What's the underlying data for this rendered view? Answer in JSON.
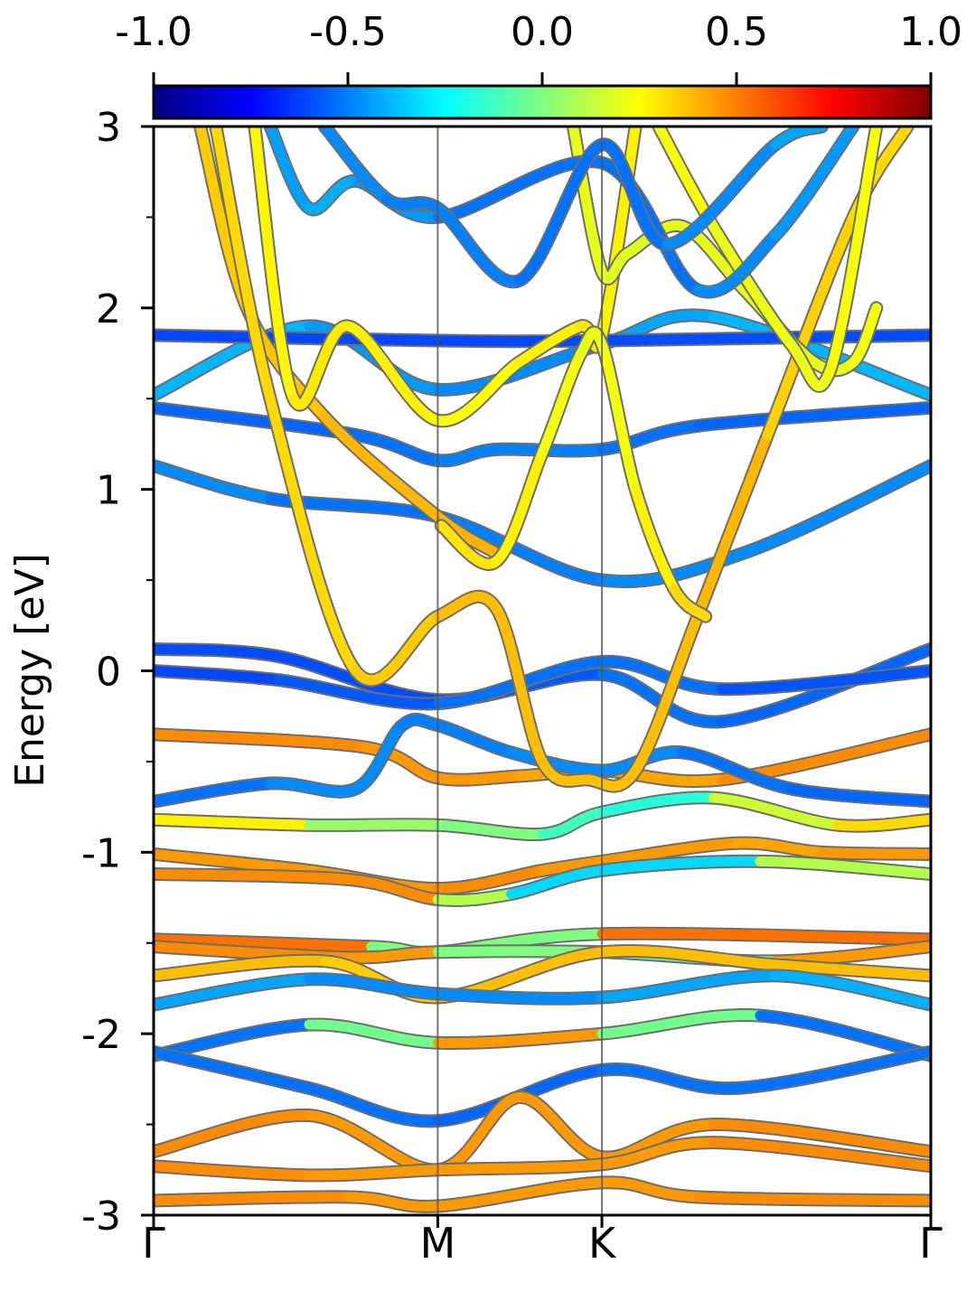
{
  "chart_data": {
    "type": "line",
    "subtype": "band-structure",
    "title": "",
    "xlabel": "",
    "ylabel": "Energy [eV]",
    "ylim": [
      -3,
      3
    ],
    "y_ticks": [
      3,
      2,
      1,
      0,
      -1,
      -2,
      -3
    ],
    "y_tick_labels": [
      "3",
      "2",
      "1",
      "0",
      "-1",
      "-2",
      "-3"
    ],
    "k_path_labels": [
      "Γ",
      "M",
      "K",
      "Γ"
    ],
    "k_path_positions": [
      0,
      0.3656,
      0.5768,
      1.0
    ],
    "grid": false,
    "legend": "none",
    "colorbar": {
      "position": "top",
      "range": [
        -1.0,
        1.0
      ],
      "ticks": [
        -1.0,
        -0.5,
        0.0,
        0.5,
        1.0
      ],
      "tick_labels": [
        "-1.0",
        "-0.5",
        "0.0",
        "0.5",
        "1.0"
      ],
      "colormap": "jet"
    },
    "colors": {
      "colormap_stops": [
        "#00007f",
        "#0000ff",
        "#007fff",
        "#00ffff",
        "#7fff7f",
        "#ffff00",
        "#ff7f00",
        "#ff0000",
        "#7f0000"
      ]
    },
    "series": [
      {
        "x": [
          0,
          0.16,
          0.3656,
          0.5768,
          0.73,
          1.0
        ],
        "y": [
          0.12,
          0.08,
          -0.16,
          -0.02,
          -0.28,
          0.12
        ],
        "c": [
          -0.6,
          -0.6,
          -0.6,
          -0.55,
          -0.5,
          -0.6
        ]
      },
      {
        "x": [
          0,
          0.16,
          0.3656,
          0.5768,
          0.73,
          1.0
        ],
        "y": [
          0.0,
          -0.05,
          -0.18,
          0.05,
          -0.1,
          0.0
        ],
        "c": [
          -0.62,
          -0.6,
          -0.55,
          -0.5,
          -0.55,
          -0.62
        ]
      },
      {
        "x": [
          0,
          0.26,
          0.3656,
          0.44,
          0.5768,
          0.7,
          1.0
        ],
        "y": [
          1.45,
          1.3,
          1.16,
          1.22,
          1.22,
          1.35,
          1.45
        ],
        "c": [
          -0.55,
          -0.55,
          -0.5,
          -0.5,
          -0.5,
          -0.55,
          -0.55
        ]
      },
      {
        "x": [
          0,
          0.15,
          0.3656,
          0.5768,
          0.76,
          1.0
        ],
        "y": [
          1.13,
          0.95,
          0.85,
          0.5,
          0.65,
          1.13
        ],
        "c": [
          -0.45,
          -0.5,
          -0.55,
          -0.45,
          -0.5,
          -0.45
        ]
      },
      {
        "x": [
          0,
          0.2,
          0.3656,
          0.5768,
          0.72,
          1.0
        ],
        "y": [
          1.52,
          1.9,
          1.55,
          1.8,
          1.95,
          1.52
        ],
        "c": [
          -0.38,
          -0.4,
          -0.5,
          -0.45,
          -0.4,
          -0.38
        ]
      },
      {
        "x": [
          0,
          0.3656,
          0.5768,
          1.0
        ],
        "y": [
          1.85,
          1.82,
          1.82,
          1.85
        ],
        "c": [
          -0.6,
          -0.62,
          -0.6,
          -0.6
        ]
      },
      {
        "x": [
          0,
          0.27,
          0.3656,
          0.47,
          0.5768,
          0.73,
          1.0
        ],
        "y": [
          -0.35,
          -0.42,
          -0.59,
          -0.58,
          -0.55,
          -0.6,
          -0.35
        ],
        "c": [
          0.5,
          0.45,
          0.45,
          0.45,
          0.4,
          0.45,
          0.5
        ]
      },
      {
        "x": [
          0,
          0.15,
          0.26,
          0.32,
          0.3656,
          0.46,
          0.5768,
          0.68,
          0.82,
          1.0
        ],
        "y": [
          -0.72,
          -0.62,
          -0.65,
          -0.3,
          -0.3,
          -0.45,
          -0.55,
          -0.45,
          -0.65,
          -0.72
        ],
        "c": [
          -0.55,
          -0.5,
          -0.45,
          -0.5,
          -0.5,
          -0.5,
          -0.45,
          -0.5,
          -0.55,
          -0.55
        ]
      },
      {
        "x": [
          0,
          0.2,
          0.3656,
          0.5,
          0.5768,
          0.72,
          0.88,
          1.0
        ],
        "y": [
          -0.82,
          -0.85,
          -0.85,
          -0.9,
          -0.78,
          -0.7,
          -0.85,
          -0.82
        ],
        "c": [
          0.35,
          0.2,
          -0.1,
          0.1,
          -0.35,
          0.0,
          0.3,
          0.35
        ]
      },
      {
        "x": [
          0,
          0.2,
          0.3656,
          0.5,
          0.5768,
          0.75,
          0.86,
          1.0
        ],
        "y": [
          -1.01,
          -1.1,
          -1.2,
          -1.1,
          -1.05,
          -0.95,
          -1.0,
          -1.01
        ],
        "c": [
          0.5,
          0.4,
          0.5,
          0.45,
          0.45,
          0.45,
          0.4,
          0.5
        ]
      },
      {
        "x": [
          0,
          0.25,
          0.3656,
          0.46,
          0.5768,
          0.78,
          1.0
        ],
        "y": [
          -1.12,
          -1.15,
          -1.26,
          -1.23,
          -1.1,
          -1.05,
          -1.12
        ],
        "c": [
          0.5,
          0.45,
          0.5,
          -0.3,
          -0.35,
          -0.3,
          0.5
        ]
      },
      {
        "x": [
          0,
          0.28,
          0.3656,
          0.5768,
          1.0
        ],
        "y": [
          -1.48,
          -1.52,
          -1.55,
          -1.45,
          -1.48
        ],
        "c": [
          0.55,
          0.5,
          -0.5,
          0.5,
          0.55
        ]
      },
      {
        "x": [
          0,
          0.25,
          0.3656,
          0.5768,
          0.8,
          1.0
        ],
        "y": [
          -1.52,
          -1.58,
          -1.55,
          -1.55,
          -1.6,
          -1.52
        ],
        "c": [
          0.5,
          0.45,
          0.45,
          -0.45,
          0.4,
          0.5
        ]
      },
      {
        "x": [
          0,
          0.22,
          0.3656,
          0.5768,
          0.8,
          1.0
        ],
        "y": [
          -1.68,
          -1.6,
          -1.8,
          -1.55,
          -1.62,
          -1.68
        ],
        "c": [
          0.4,
          0.35,
          0.35,
          0.4,
          0.35,
          0.4
        ]
      },
      {
        "x": [
          0,
          0.2,
          0.3656,
          0.5768,
          0.8,
          1.0
        ],
        "y": [
          -1.84,
          -1.7,
          -1.78,
          -1.8,
          -1.68,
          -1.84
        ],
        "c": [
          -0.4,
          -0.45,
          -0.5,
          -0.45,
          -0.4,
          -0.4
        ]
      },
      {
        "x": [
          0,
          0.2,
          0.3656,
          0.5768,
          0.78,
          1.0
        ],
        "y": [
          -2.12,
          -1.95,
          -2.05,
          -2.0,
          -1.9,
          -2.12
        ],
        "c": [
          -0.55,
          -0.5,
          0.45,
          0.45,
          -0.5,
          -0.55
        ]
      },
      {
        "x": [
          0,
          0.2,
          0.3656,
          0.5768,
          0.75,
          1.0
        ],
        "y": [
          -2.1,
          -2.3,
          -2.48,
          -2.2,
          -2.3,
          -2.1
        ],
        "c": [
          -0.55,
          -0.5,
          -0.55,
          -0.55,
          -0.5,
          -0.55
        ]
      },
      {
        "x": [
          0,
          0.2,
          0.3656,
          0.47,
          0.5768,
          0.72,
          1.0
        ],
        "y": [
          -2.65,
          -2.45,
          -2.75,
          -2.35,
          -2.68,
          -2.5,
          -2.65
        ],
        "c": [
          0.5,
          0.45,
          0.45,
          0.45,
          0.45,
          0.45,
          0.5
        ]
      },
      {
        "x": [
          0,
          0.2,
          0.3656,
          0.5768,
          0.72,
          1.0
        ],
        "y": [
          -2.73,
          -2.78,
          -2.75,
          -2.72,
          -2.6,
          -2.73
        ],
        "c": [
          0.5,
          0.45,
          0.45,
          0.45,
          0.45,
          0.5
        ]
      },
      {
        "x": [
          0,
          0.25,
          0.3656,
          0.5768,
          0.7,
          1.0
        ],
        "y": [
          -2.92,
          -2.9,
          -2.95,
          -2.82,
          -2.9,
          -2.92
        ],
        "c": [
          0.5,
          0.45,
          0.45,
          0.45,
          0.45,
          0.5
        ]
      },
      {
        "x": [
          0.06,
          0.12,
          0.22,
          0.3656,
          0.44
        ],
        "y": [
          3.0,
          2.0,
          1.4,
          0.85,
          0.65
        ],
        "c": [
          0.35,
          0.35,
          0.38,
          0.4,
          0.4
        ]
      },
      {
        "x": [
          0.08,
          0.15,
          0.26,
          0.3656,
          0.44,
          0.5,
          0.56,
          0.62,
          0.7,
          0.79,
          0.9,
          0.97
        ],
        "y": [
          3.0,
          1.5,
          0.0,
          0.3,
          0.35,
          -0.5,
          -0.6,
          -0.55,
          0.3,
          1.3,
          2.5,
          3.0
        ],
        "c": [
          0.35,
          0.3,
          0.35,
          0.35,
          0.4,
          0.35,
          0.4,
          0.35,
          0.4,
          0.38,
          0.3,
          0.35
        ]
      },
      {
        "x": [
          0.13,
          0.18,
          0.25,
          0.3656,
          0.47,
          0.55,
          0.5768,
          0.62
        ],
        "y": [
          3.0,
          1.5,
          1.9,
          1.38,
          1.7,
          1.9,
          1.85,
          3.0
        ],
        "c": [
          0.25,
          0.28,
          0.3,
          0.25,
          0.25,
          0.3,
          0.3,
          0.25
        ]
      },
      {
        "x": [
          0.37,
          0.44,
          0.5,
          0.55,
          0.5768,
          0.62,
          0.67,
          0.71
        ],
        "y": [
          0.8,
          0.6,
          1.2,
          1.75,
          1.8,
          1.0,
          0.45,
          0.3
        ],
        "c": [
          0.3,
          0.3,
          0.25,
          0.2,
          0.2,
          0.25,
          0.3,
          0.35
        ]
      },
      {
        "x": [
          0.54,
          0.5768,
          0.61,
          0.68,
          0.76,
          0.85,
          0.9,
          0.93
        ],
        "y": [
          3.0,
          2.2,
          2.3,
          2.45,
          2.1,
          1.7,
          1.7,
          2.0
        ],
        "c": [
          0.2,
          0.2,
          0.18,
          0.2,
          0.2,
          0.2,
          0.2,
          0.25
        ]
      },
      {
        "x": [
          0.65,
          0.72,
          0.82,
          0.87,
          0.93
        ],
        "y": [
          3.0,
          2.45,
          1.8,
          1.65,
          3.0
        ],
        "c": [
          0.25,
          0.22,
          0.2,
          0.22,
          0.25
        ]
      },
      {
        "x": [
          0.15,
          0.2,
          0.26,
          0.3656,
          0.5768,
          0.7,
          0.8,
          0.9
        ],
        "y": [
          3.0,
          2.55,
          2.7,
          2.5,
          2.8,
          2.1,
          2.4,
          3.0
        ],
        "c": [
          -0.45,
          -0.42,
          -0.4,
          -0.5,
          -0.55,
          -0.5,
          -0.45,
          -0.45
        ]
      },
      {
        "x": [
          0.22,
          0.3,
          0.3656,
          0.47,
          0.5768,
          0.66,
          0.8,
          0.86
        ],
        "y": [
          3.0,
          2.6,
          2.55,
          2.15,
          2.9,
          2.35,
          2.9,
          3.0
        ],
        "c": [
          -0.45,
          -0.5,
          -0.5,
          -0.5,
          -0.55,
          -0.5,
          -0.45,
          -0.4
        ]
      }
    ]
  }
}
